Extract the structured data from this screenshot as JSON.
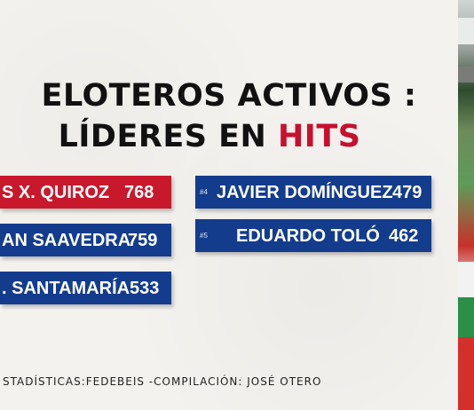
{
  "title": {
    "line1": "ELOTEROS ACTIVOS :",
    "line2_prefix": "LÍDERES EN ",
    "line2_highlight": "HITS"
  },
  "leaders": [
    {
      "rank": "",
      "name": "S X. QUIROZ",
      "hits": "768",
      "color": "#c8182c"
    },
    {
      "rank": "",
      "name": "AN SAAVEDRA",
      "hits": "759",
      "color": "#133c8c"
    },
    {
      "rank": "",
      "name": ". SANTAMARÍA",
      "hits": "533",
      "color": "#133c8c"
    },
    {
      "rank": "#4",
      "name": "JAVIER DOMÍNGUEZ",
      "hits": "479",
      "color": "#133c8c"
    },
    {
      "rank": "#5",
      "name": "EDUARDO TOLÓ",
      "hits": "462",
      "color": "#133c8c"
    }
  ],
  "credits": "STADÍSTICAS:FEDEBEIS -COMPILACIÓN: JOSÉ OTERO",
  "colors": {
    "accent_red": "#c8102e",
    "bar_blue": "#133c8c",
    "bar_red": "#c8182c"
  }
}
